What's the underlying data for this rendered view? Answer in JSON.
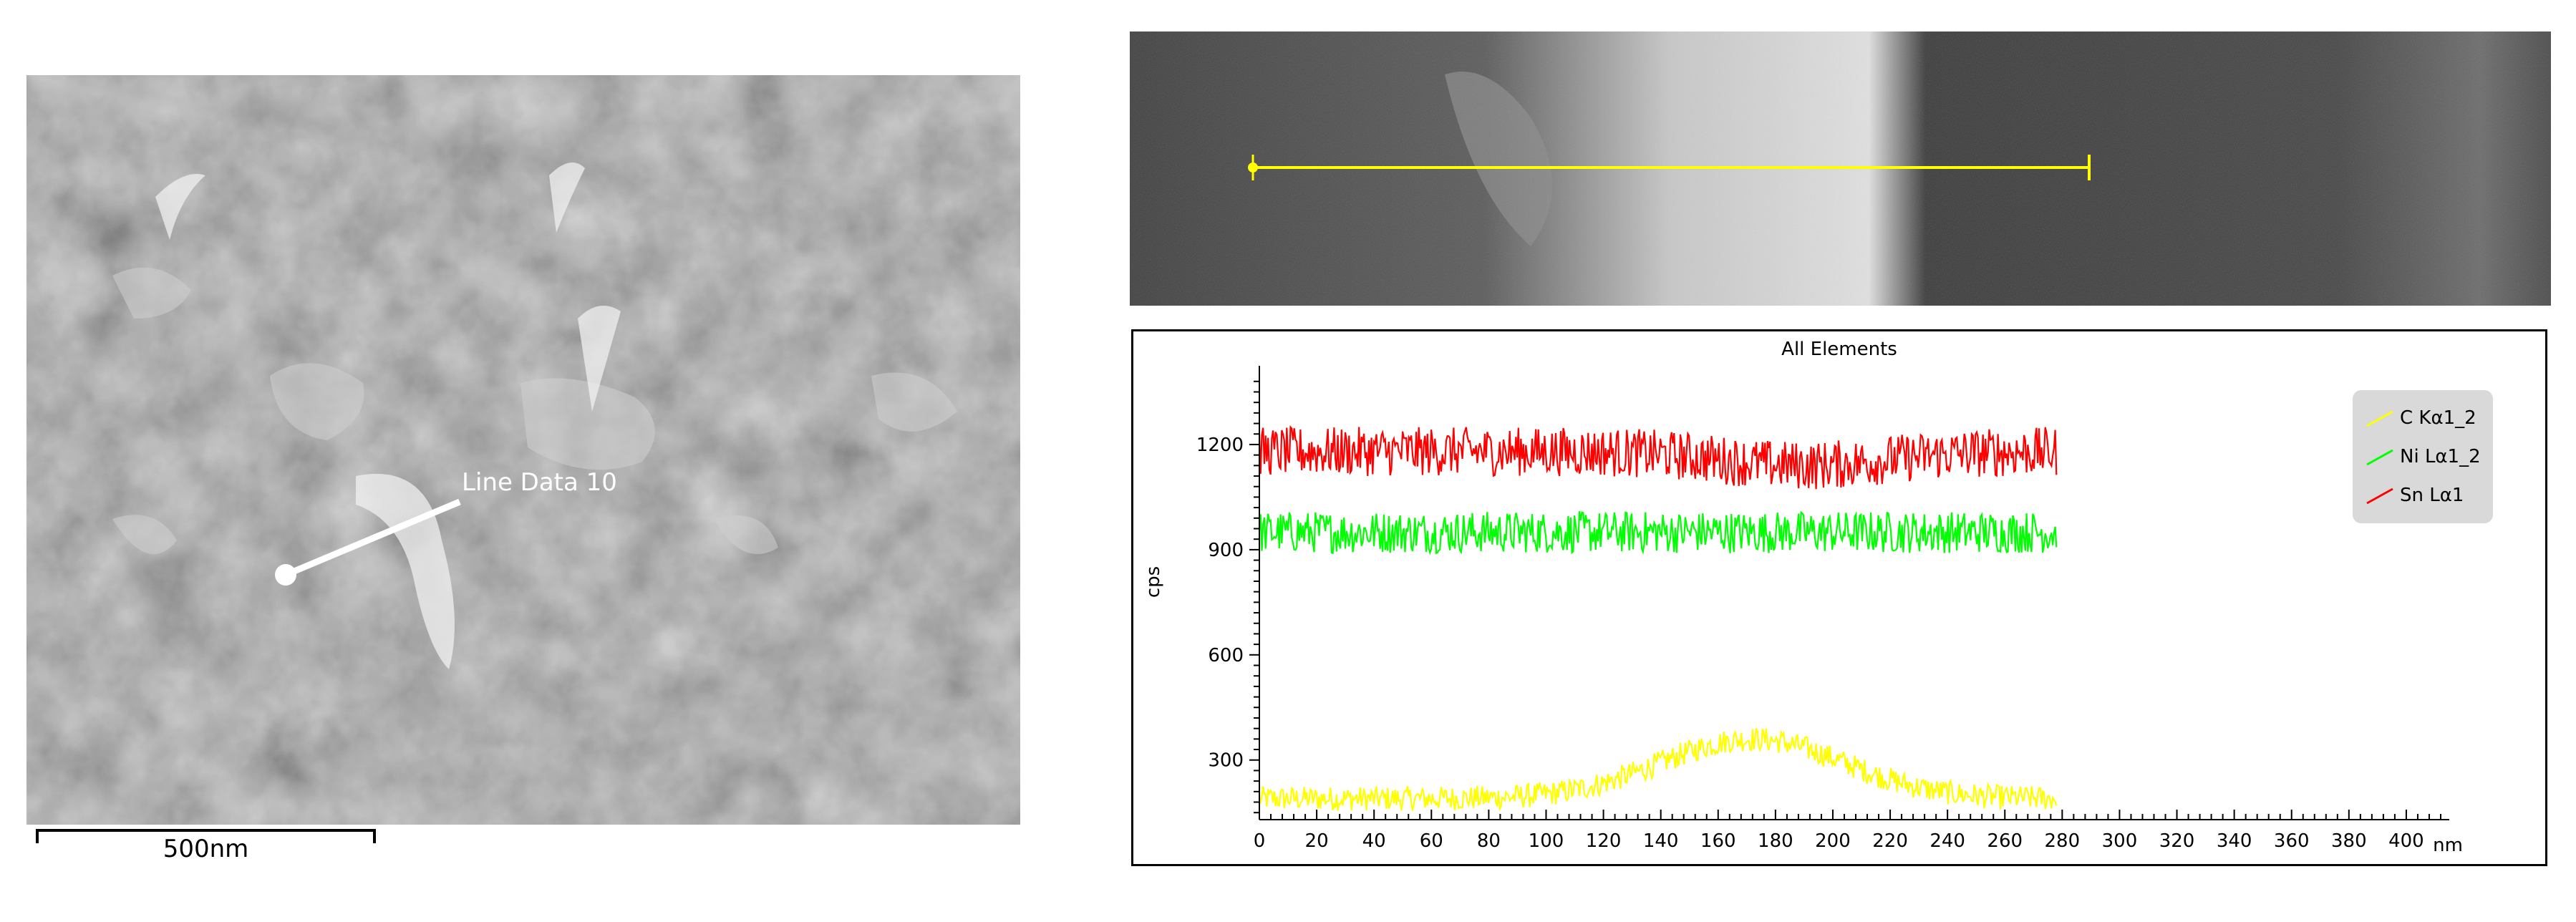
{
  "sem_image": {
    "annotation_label": "Line Data 10",
    "scalebar_label": "500nm"
  },
  "chart_data": {
    "type": "line",
    "title": "All Elements",
    "xlabel": "nm",
    "ylabel": "cps",
    "xlim": [
      0,
      415
    ],
    "ylim": [
      130,
      1400
    ],
    "x_ticks": [
      0,
      20,
      40,
      60,
      80,
      100,
      120,
      140,
      160,
      180,
      200,
      220,
      240,
      260,
      280,
      300,
      320,
      340,
      360,
      380,
      400
    ],
    "y_ticks": [
      300,
      600,
      900,
      1200
    ],
    "x_data_max": 278,
    "legend_position": "top-right",
    "series": [
      {
        "name": "C Kα1_2",
        "color": "#ffff00",
        "baseline_start": 190,
        "peak": 360,
        "peak_x": 172,
        "noise": 35
      },
      {
        "name": "Ni Lα1_2",
        "color": "#00ff00",
        "level": 950,
        "noise": 60
      },
      {
        "name": "Sn Lα1",
        "color": "#ff0000",
        "level": 1180,
        "noise": 70
      }
    ]
  }
}
